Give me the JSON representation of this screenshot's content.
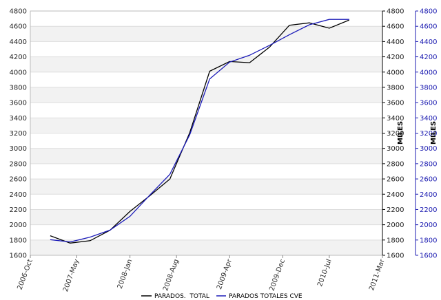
{
  "chart_data": {
    "type": "line",
    "x_labels": [
      "2006-Oct",
      "2007-May",
      "2008-Jan",
      "2008-Aug",
      "2009-Apr",
      "2009-Dec",
      "2010-Jul",
      "2011-Mar"
    ],
    "y_ticks": [
      1600,
      1800,
      2000,
      2200,
      2400,
      2600,
      2800,
      3000,
      3200,
      3400,
      3600,
      3800,
      4000,
      4200,
      4400,
      4600,
      4800
    ],
    "ylim": [
      1600,
      4800
    ],
    "y2lim": [
      1600,
      4800
    ],
    "y2label": "MILES",
    "y3label": "MILES",
    "grid": "horizontal alternating bands",
    "legend_position": "bottom",
    "series": [
      {
        "name": "PARADOS.  TOTAL",
        "color": "#000000",
        "x": [
          "2007-Jan",
          "2007-Apr",
          "2007-Jul",
          "2007-Oct",
          "2008-Jan",
          "2008-Apr",
          "2008-Jul",
          "2008-Oct",
          "2009-Jan",
          "2009-Apr",
          "2009-Jul",
          "2009-Oct",
          "2010-Jan",
          "2010-Apr",
          "2010-Jul",
          "2010-Oct"
        ],
        "values": [
          1856,
          1760,
          1791,
          1928,
          2174,
          2381,
          2599,
          3207,
          4011,
          4138,
          4123,
          4327,
          4613,
          4645,
          4575,
          4682
        ]
      },
      {
        "name": "PARADOS TOTALES CVE",
        "color": "#1a1ab8",
        "x": [
          "2007-Jan",
          "2007-Apr",
          "2007-Jul",
          "2007-Oct",
          "2008-Jan",
          "2008-Apr",
          "2008-Jul",
          "2008-Oct",
          "2009-Jan",
          "2009-Apr",
          "2009-Jul",
          "2009-Oct",
          "2010-Jan",
          "2010-Apr",
          "2010-Jul",
          "2010-Oct"
        ],
        "values": [
          1805,
          1775,
          1838,
          1930,
          2110,
          2390,
          2660,
          3180,
          3910,
          4130,
          4220,
          4350,
          4490,
          4620,
          4690,
          4690
        ]
      }
    ]
  }
}
